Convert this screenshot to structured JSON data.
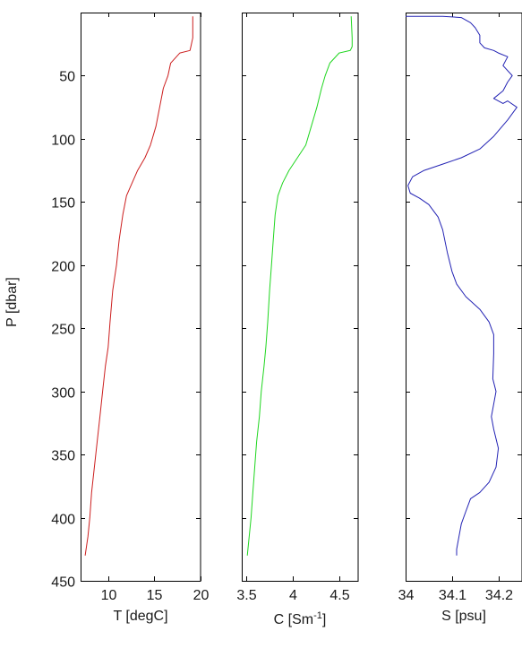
{
  "y_axis": {
    "label": "P [dbar]",
    "ylim": [
      0,
      450
    ],
    "ticks": [
      50,
      100,
      150,
      200,
      250,
      300,
      350,
      400,
      450
    ],
    "reversed": true
  },
  "chart_data": [
    {
      "type": "line",
      "name": "temperature",
      "xlabel": "T [degC]",
      "xlim": [
        7,
        20
      ],
      "xticks": [
        10,
        15,
        20
      ],
      "color": "#cc1e1e",
      "x": [
        19.2,
        19.2,
        19.0,
        18.9,
        17.8,
        16.8,
        16.5,
        16.0,
        15.6,
        15.2,
        14.6,
        14.0,
        13.2,
        12.6,
        12.0,
        11.6,
        11.2,
        10.9,
        10.5,
        10.2,
        10.0,
        9.7,
        9.4,
        9.1,
        8.8,
        8.5,
        8.2,
        8.0,
        7.8,
        7.5
      ],
      "y": [
        3,
        20,
        27,
        30,
        32,
        40,
        50,
        60,
        75,
        90,
        105,
        115,
        125,
        135,
        145,
        160,
        180,
        200,
        220,
        245,
        265,
        280,
        300,
        320,
        340,
        360,
        380,
        400,
        415,
        430
      ]
    },
    {
      "type": "line",
      "name": "conductivity",
      "xlabel": "C [Sm",
      "xlabel_sup": "-1",
      "xlabel_tail": "]",
      "xlim": [
        3.45,
        4.7
      ],
      "xticks": [
        3.5,
        4,
        4.5
      ],
      "xticklabels": [
        "3.5",
        "4",
        "4.5"
      ],
      "color": "#1fd61f",
      "x": [
        4.63,
        4.64,
        4.64,
        4.62,
        4.5,
        4.4,
        4.35,
        4.31,
        4.26,
        4.2,
        4.14,
        4.05,
        3.96,
        3.89,
        3.84,
        3.81,
        3.79,
        3.77,
        3.75,
        3.73,
        3.71,
        3.69,
        3.66,
        3.64,
        3.61,
        3.59,
        3.57,
        3.55,
        3.53,
        3.51
      ],
      "y": [
        3,
        20,
        27,
        30,
        32,
        40,
        50,
        60,
        75,
        90,
        105,
        115,
        125,
        135,
        145,
        160,
        180,
        200,
        220,
        245,
        265,
        280,
        300,
        320,
        340,
        360,
        380,
        400,
        415,
        430
      ]
    },
    {
      "type": "line",
      "name": "salinity",
      "xlabel": "S [psu]",
      "xlim": [
        34,
        34.25
      ],
      "xticks": [
        34,
        34.1,
        34.2
      ],
      "xticklabels": [
        "34",
        "34.1",
        "34.2"
      ],
      "color": "#2323b4",
      "x": [
        34.0,
        34.08,
        34.12,
        34.14,
        34.15,
        34.16,
        34.16,
        34.17,
        34.19,
        34.2,
        34.22,
        34.21,
        34.23,
        34.22,
        34.21,
        34.19,
        34.21,
        34.22,
        34.24,
        34.22,
        34.19,
        34.16,
        34.12,
        34.08,
        34.04,
        34.015,
        34.005,
        34.01,
        34.03,
        34.05,
        34.07,
        34.08,
        34.09,
        34.1,
        34.11,
        34.13,
        34.16,
        34.18,
        34.19,
        34.19,
        34.188,
        34.195,
        34.19,
        34.185,
        34.19,
        34.2,
        34.195,
        34.18,
        34.16,
        34.14,
        34.13,
        34.12,
        34.115,
        34.11,
        34.11
      ],
      "y": [
        3,
        3,
        4,
        8,
        12,
        18,
        24,
        28,
        30,
        32,
        35,
        42,
        50,
        55,
        62,
        68,
        72,
        70,
        75,
        85,
        98,
        108,
        115,
        120,
        125,
        130,
        137,
        143,
        147,
        152,
        162,
        172,
        190,
        205,
        215,
        225,
        235,
        245,
        255,
        270,
        290,
        300,
        310,
        320,
        330,
        345,
        360,
        372,
        380,
        385,
        395,
        405,
        415,
        425,
        430
      ]
    }
  ]
}
